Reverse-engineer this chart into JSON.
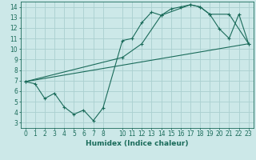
{
  "xlabel": "Humidex (Indice chaleur)",
  "bg_color": "#cce8e8",
  "grid_color": "#aad0d0",
  "line_color": "#1a6b5a",
  "xlim": [
    -0.5,
    23.5
  ],
  "ylim": [
    2.5,
    14.5
  ],
  "xticks": [
    0,
    1,
    2,
    3,
    4,
    5,
    6,
    7,
    8,
    10,
    11,
    12,
    13,
    14,
    15,
    16,
    17,
    18,
    19,
    20,
    21,
    22,
    23
  ],
  "yticks": [
    3,
    4,
    5,
    6,
    7,
    8,
    9,
    10,
    11,
    12,
    13,
    14
  ],
  "series1_x": [
    0,
    1,
    2,
    3,
    4,
    5,
    6,
    7,
    8,
    10,
    11,
    12,
    13,
    14,
    15,
    16,
    17,
    18,
    19,
    20,
    21,
    22,
    23
  ],
  "series1_y": [
    6.9,
    6.7,
    5.3,
    5.8,
    4.5,
    3.8,
    4.2,
    3.2,
    4.4,
    10.8,
    11.0,
    12.5,
    13.5,
    13.2,
    13.8,
    14.0,
    14.2,
    14.0,
    13.3,
    11.9,
    11.0,
    13.3,
    10.5
  ],
  "series2_x": [
    0,
    10,
    12,
    14,
    17,
    18,
    19,
    21,
    23
  ],
  "series2_y": [
    6.9,
    9.2,
    10.5,
    13.2,
    14.2,
    14.0,
    13.3,
    13.3,
    10.5
  ],
  "series3_x": [
    0,
    23
  ],
  "series3_y": [
    6.9,
    10.5
  ],
  "font_size": 5.5,
  "xlabel_fontsize": 6.5
}
